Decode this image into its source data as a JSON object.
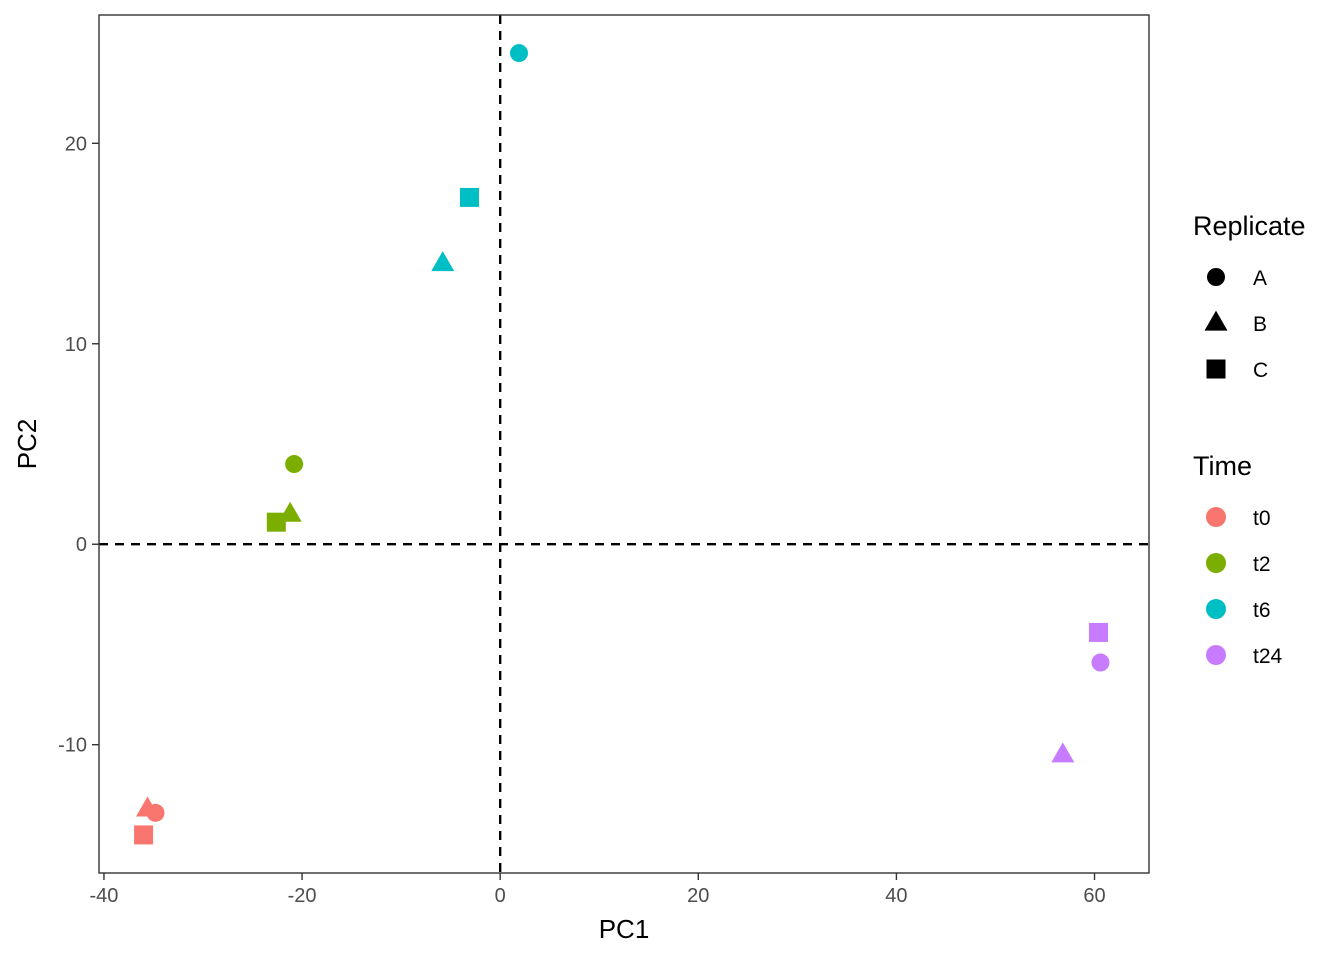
{
  "chart_data": {
    "type": "scatter",
    "title": "",
    "xlabel": "PC1",
    "ylabel": "PC2",
    "xlim": [
      -40.5,
      65.5
    ],
    "ylim": [
      -16.4,
      26.4
    ],
    "x_ticks": [
      -40,
      -20,
      0,
      20,
      40,
      60
    ],
    "x_tick_labels": [
      "-40",
      "-20",
      "0",
      "20",
      "40",
      "60"
    ],
    "y_ticks": [
      -10,
      0,
      10,
      20
    ],
    "y_tick_labels": [
      "-10",
      "0",
      "10",
      "20"
    ],
    "grid": false,
    "reference_lines": {
      "x": 0,
      "y": 0,
      "style": "dashed"
    },
    "legend_placement": "right",
    "points": [
      {
        "time": "t0",
        "replicate": "A",
        "x": -34.8,
        "y": -13.4
      },
      {
        "time": "t0",
        "replicate": "B",
        "x": -35.6,
        "y": -13.2
      },
      {
        "time": "t0",
        "replicate": "C",
        "x": -36.0,
        "y": -14.5
      },
      {
        "time": "t2",
        "replicate": "A",
        "x": -20.8,
        "y": 4.0
      },
      {
        "time": "t2",
        "replicate": "B",
        "x": -21.2,
        "y": 1.5
      },
      {
        "time": "t2",
        "replicate": "C",
        "x": -22.6,
        "y": 1.1
      },
      {
        "time": "t6",
        "replicate": "A",
        "x": 1.9,
        "y": 24.5
      },
      {
        "time": "t6",
        "replicate": "B",
        "x": -5.8,
        "y": 14.0
      },
      {
        "time": "t6",
        "replicate": "C",
        "x": -3.1,
        "y": 17.3
      },
      {
        "time": "t24",
        "replicate": "A",
        "x": 60.6,
        "y": -5.9
      },
      {
        "time": "t24",
        "replicate": "B",
        "x": 56.8,
        "y": -10.5
      },
      {
        "time": "t24",
        "replicate": "C",
        "x": 60.4,
        "y": -4.4
      }
    ],
    "legends": {
      "replicate": {
        "title": "Replicate",
        "entries": [
          {
            "label": "A",
            "shape": "circle"
          },
          {
            "label": "B",
            "shape": "triangle"
          },
          {
            "label": "C",
            "shape": "square"
          }
        ]
      },
      "time": {
        "title": "Time",
        "entries": [
          {
            "label": "t0",
            "color": "#F8766D"
          },
          {
            "label": "t2",
            "color": "#7CAE00"
          },
          {
            "label": "t6",
            "color": "#00BFC4"
          },
          {
            "label": "t24",
            "color": "#C77CFF"
          }
        ]
      }
    }
  }
}
